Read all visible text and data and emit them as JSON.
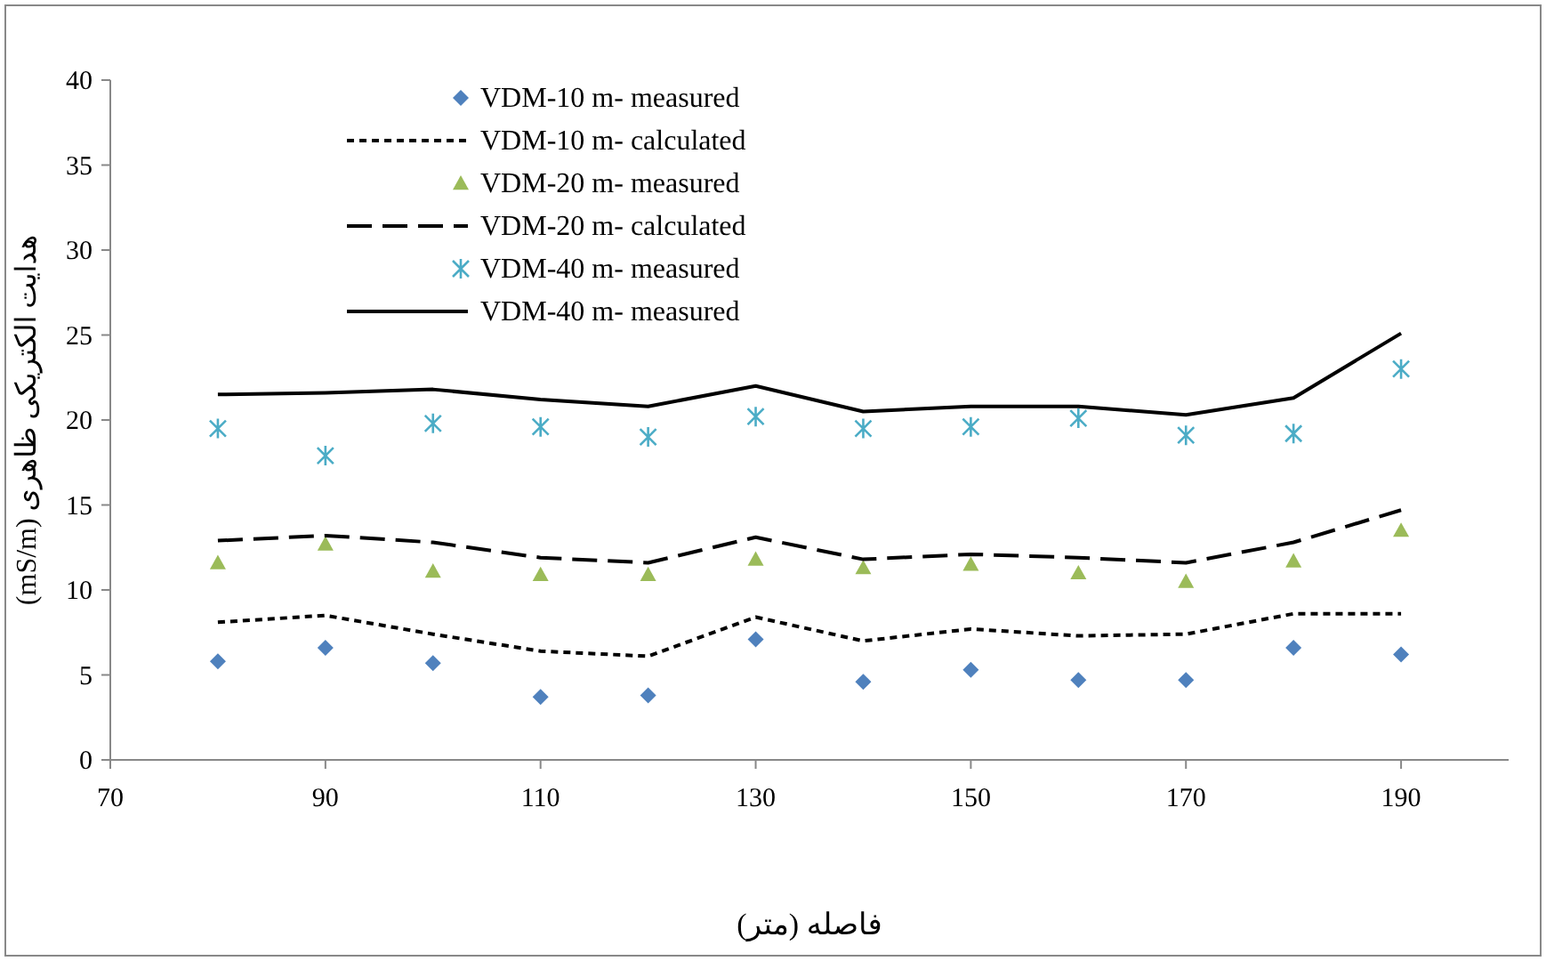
{
  "chart_data": {
    "type": "line",
    "xlabel": "فاصله (متر)",
    "ylabel": "هدایت الکتریکی ظاهری (mS/m)",
    "x": [
      80,
      90,
      100,
      110,
      120,
      130,
      140,
      150,
      160,
      170,
      180,
      190
    ],
    "xlim": [
      70,
      200
    ],
    "xticks": [
      70,
      90,
      110,
      130,
      150,
      170,
      190
    ],
    "ylim": [
      0,
      40
    ],
    "yticks": [
      0,
      5,
      10,
      15,
      20,
      25,
      30,
      35,
      40
    ],
    "grid": false,
    "legend": "top",
    "series": [
      {
        "name": "VDM-10 m- measured",
        "type": "scatter",
        "marker": "diamond",
        "color": "#4f81bd",
        "values": [
          5.8,
          6.6,
          5.7,
          3.7,
          3.8,
          7.1,
          4.6,
          5.3,
          4.7,
          4.7,
          6.6,
          6.2
        ]
      },
      {
        "name": "VDM-10 m- calculated",
        "type": "line",
        "line_style": "dotted",
        "color": "#000000",
        "values": [
          8.1,
          8.5,
          7.4,
          6.4,
          6.1,
          8.4,
          7.0,
          7.7,
          7.3,
          7.4,
          8.6,
          8.6
        ]
      },
      {
        "name": "VDM-20 m- measured",
        "type": "scatter",
        "marker": "triangle",
        "color": "#9bbb59",
        "values": [
          11.6,
          12.7,
          11.1,
          10.9,
          10.9,
          11.8,
          11.3,
          11.5,
          11.0,
          10.5,
          11.7,
          13.5
        ]
      },
      {
        "name": "VDM-20 m- calculated",
        "type": "line",
        "line_style": "dashed",
        "color": "#000000",
        "values": [
          12.9,
          13.2,
          12.8,
          11.9,
          11.6,
          13.1,
          11.8,
          12.1,
          11.9,
          11.6,
          12.8,
          14.7
        ]
      },
      {
        "name": "VDM-40 m- measured",
        "type": "scatter",
        "marker": "cross",
        "color": "#4bacc6",
        "values": [
          19.5,
          17.9,
          19.8,
          19.6,
          19.0,
          20.2,
          19.5,
          19.6,
          20.1,
          19.1,
          19.2,
          23.0
        ]
      },
      {
        "name": "VDM-40 m- measured",
        "type": "line",
        "line_style": "solid",
        "color": "#000000",
        "values": [
          21.5,
          21.6,
          21.8,
          21.2,
          20.8,
          22.0,
          20.5,
          20.8,
          20.8,
          20.3,
          21.3,
          25.1
        ]
      }
    ]
  }
}
